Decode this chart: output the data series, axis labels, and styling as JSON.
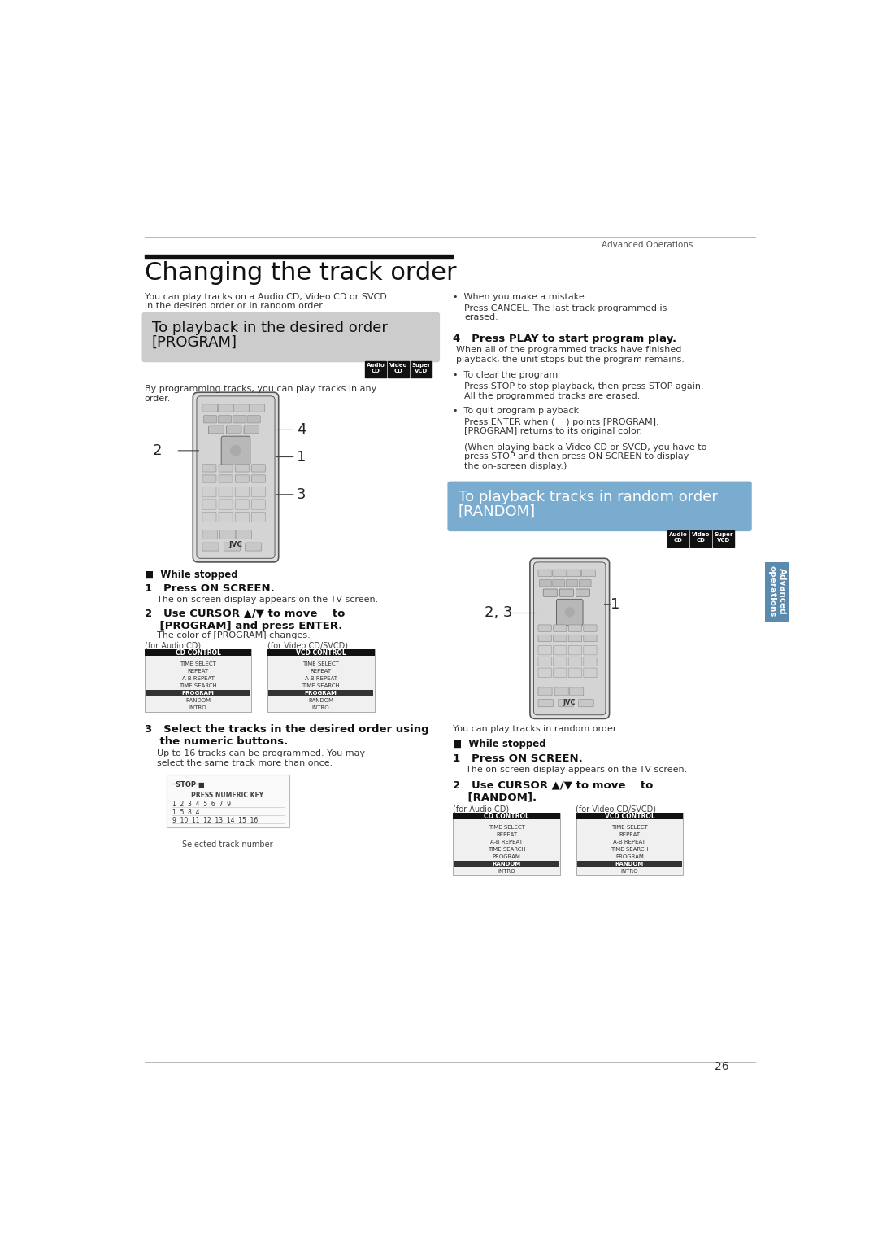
{
  "page_bg": "#ffffff",
  "page_width": 10.8,
  "page_height": 15.29,
  "header_text": "Advanced Operations",
  "page_number": "26",
  "title_bar_color": "#111111",
  "title": "Changing the track order",
  "title_fontsize": 22,
  "intro_text": "You can play tracks on a Audio CD, Video CD or SVCD\nin the desired order or in random order.",
  "section1_bg": "#cccccc",
  "section1_title_line1": "To playback in the desired order",
  "section1_title_line2": "[PROGRAM]",
  "section1_title_fontsize": 13,
  "section2_bg": "#7aaccf",
  "section2_title_line1": "To playback tracks in random order",
  "section2_title_line2": "[RANDOM]",
  "section2_title_fontsize": 13,
  "badge_bg": "#111111",
  "badge_texts": [
    "Audio\nCD",
    "Video\nCD",
    "Super\nVCD"
  ],
  "body_fontsize": 8,
  "small_fontsize": 7,
  "program_body": "By programming tracks, you can play tracks in any\norder.",
  "while_stopped": "■  While stopped",
  "step1_title": "1   Press ON SCREEN.",
  "step1_body": "The on-screen display appears on the TV screen.",
  "step2_program_title": "2   Use CURSOR ▲/▼ to move    to\n    [PROGRAM] and press ENTER.",
  "step2_program_body": "The color of [PROGRAM] changes.",
  "for_audio_cd": "(for Audio CD)",
  "for_video_svcd": "(for Video CD/SVCD)",
  "step3_title": "3   Select the tracks in the desired order using\n    the numeric buttons.",
  "step3_body": "Up to 16 tracks can be programmed. You may\nselect the same track more than once.",
  "bullet_mistake": "•  When you make a mistake",
  "bullet_mistake_body": "Press CANCEL. The last track programmed is\nerased.",
  "step4_title": "4   Press PLAY to start program play.",
  "step4_body": "When all of the programmed tracks have finished\nplayback, the unit stops but the program remains.",
  "bullet_clear": "•  To clear the program",
  "bullet_clear_body": "Press STOP to stop playback, then press STOP again.\nAll the programmed tracks are erased.",
  "bullet_quit": "•  To quit program playback",
  "bullet_quit_body": "Press ENTER when (    ) points [PROGRAM].\n[PROGRAM] returns to its original color.",
  "bullet_quit_body2": "(When playing back a Video CD or SVCD, you have to\npress STOP and then press ON SCREEN to display\nthe on-screen display.)",
  "random_body": "You can play tracks in random order.",
  "step1_random_body": "The on-screen display appears on the TV screen.",
  "step2_random_title": "2   Use CURSOR ▲/▼ to move    to\n    [RANDOM].",
  "sidebar_text": "Advanced\noperations",
  "selected_track_label": "Selected track number",
  "osd_rows_program": [
    "TIME SELECT",
    "REPEAT",
    "A-B REPEAT",
    "TIME SEARCH",
    "PROGRAM",
    "RANDOM",
    "INTRO"
  ],
  "osd_rows_random": [
    "TIME SELECT",
    "REPEAT",
    "A-B REPEAT",
    "TIME SEARCH",
    "PROGRAM",
    "RANDOM",
    "INTRO"
  ],
  "highlight_program": "PROGRAM",
  "highlight_random": "RANDOM"
}
